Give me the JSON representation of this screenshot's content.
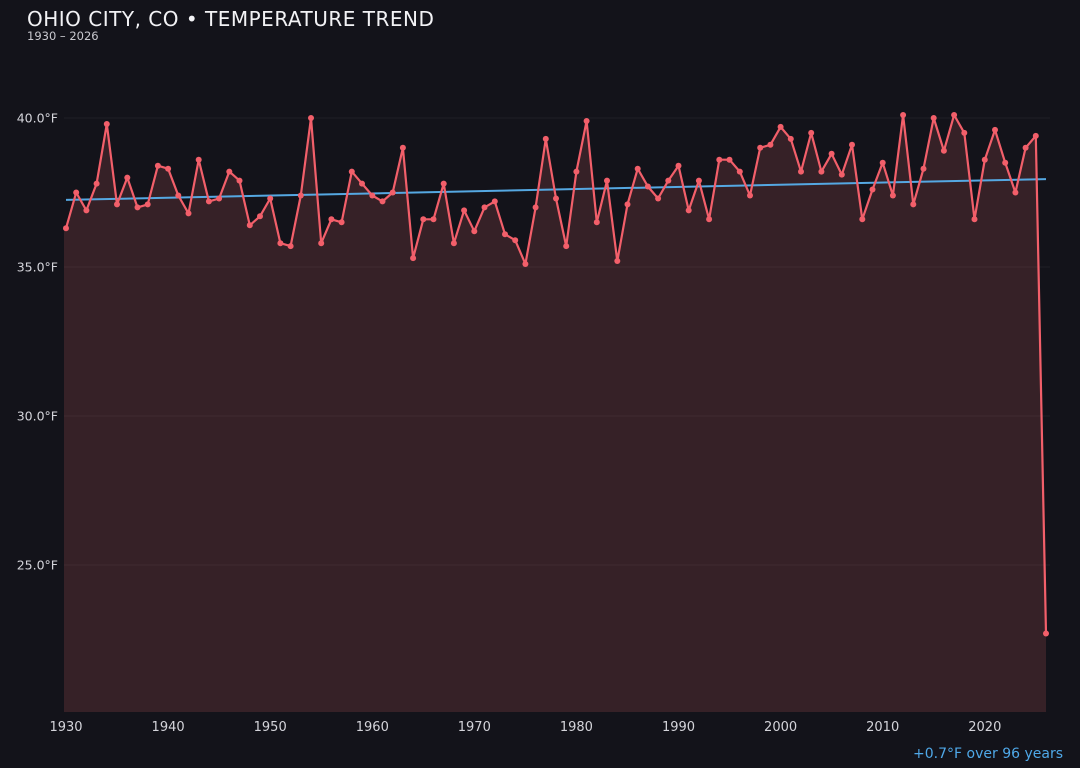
{
  "header": {
    "title": "OHIO CITY, CO • TEMPERATURE TREND",
    "subtitle": "1930 – 2026"
  },
  "footer": {
    "trend_label": "+0.7°F over 96 years"
  },
  "chart_data": {
    "type": "line",
    "title": "OHIO CITY, CO • TEMPERATURE TREND",
    "subtitle": "1930 – 2026",
    "xlabel": "",
    "ylabel": "",
    "xlim": [
      1930,
      2026
    ],
    "ylim": [
      20.0,
      41.6
    ],
    "grid": true,
    "legend_position": "none",
    "x": [
      1930,
      1931,
      1932,
      1933,
      1934,
      1935,
      1936,
      1937,
      1938,
      1939,
      1940,
      1941,
      1942,
      1943,
      1944,
      1945,
      1946,
      1947,
      1948,
      1949,
      1950,
      1951,
      1952,
      1953,
      1954,
      1955,
      1956,
      1957,
      1958,
      1959,
      1960,
      1961,
      1962,
      1963,
      1964,
      1965,
      1966,
      1967,
      1968,
      1969,
      1970,
      1971,
      1972,
      1973,
      1974,
      1975,
      1976,
      1977,
      1978,
      1979,
      1980,
      1981,
      1982,
      1983,
      1984,
      1985,
      1986,
      1987,
      1988,
      1989,
      1990,
      1991,
      1992,
      1993,
      1994,
      1995,
      1996,
      1997,
      1998,
      1999,
      2000,
      2001,
      2002,
      2003,
      2004,
      2005,
      2006,
      2007,
      2008,
      2009,
      2010,
      2011,
      2012,
      2013,
      2014,
      2015,
      2016,
      2017,
      2018,
      2019,
      2020,
      2021,
      2022,
      2023,
      2024,
      2025,
      2026
    ],
    "series": [
      {
        "name": "annual-mean-temperature-f",
        "values": [
          36.3,
          37.5,
          36.9,
          37.8,
          39.8,
          37.1,
          38.0,
          37.0,
          37.1,
          38.4,
          38.3,
          37.4,
          36.8,
          38.6,
          37.2,
          37.3,
          38.2,
          37.9,
          36.4,
          36.7,
          37.3,
          35.8,
          35.7,
          37.4,
          40.0,
          35.8,
          36.6,
          36.5,
          38.2,
          37.8,
          37.4,
          37.2,
          37.5,
          39.0,
          35.3,
          36.6,
          36.6,
          37.8,
          35.8,
          36.9,
          36.2,
          37.0,
          37.2,
          36.1,
          35.9,
          35.1,
          37.0,
          39.3,
          37.3,
          35.7,
          38.2,
          39.9,
          36.5,
          37.9,
          35.2,
          37.1,
          38.3,
          37.7,
          37.3,
          37.9,
          38.4,
          36.9,
          37.9,
          36.6,
          38.6,
          38.6,
          38.2,
          37.4,
          39.0,
          39.1,
          39.7,
          39.3,
          38.2,
          39.5,
          38.2,
          38.8,
          38.1,
          39.1,
          36.6,
          37.6,
          38.5,
          37.4,
          40.1,
          37.1,
          38.3,
          40.0,
          38.9,
          40.1,
          39.5,
          36.6,
          38.6,
          39.6,
          38.5,
          37.5,
          39.0,
          39.4,
          22.7
        ]
      }
    ],
    "trend_line": {
      "start_x": 1930,
      "start_y": 37.25,
      "end_x": 2026,
      "end_y": 37.95,
      "label": "+0.7°F over 96 years"
    },
    "y_ticks": [
      {
        "value": 40.0,
        "label": "40.0°F"
      },
      {
        "value": 35.0,
        "label": "35.0°F"
      },
      {
        "value": 30.0,
        "label": "30.0°F"
      },
      {
        "value": 25.0,
        "label": "25.0°F"
      }
    ],
    "x_ticks": [
      1930,
      1940,
      1950,
      1960,
      1970,
      1980,
      1990,
      2000,
      2010,
      2020
    ],
    "colors": {
      "line": "#f25f6a",
      "marker": "#f25f6a",
      "area_fill": "#362127",
      "trend": "#55a8e2",
      "background": "#13131a",
      "tick_text": "#d4d4da",
      "annotation_text": "#4fa8e8"
    }
  }
}
